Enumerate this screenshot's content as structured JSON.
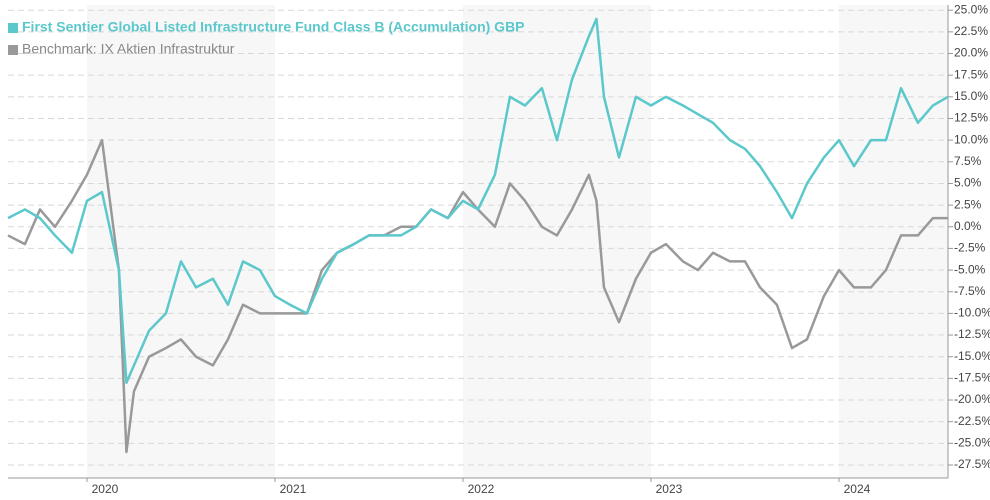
{
  "chart_data": {
    "type": "line",
    "x": [
      2019.58,
      2019.67,
      2019.75,
      2019.83,
      2019.92,
      2020.0,
      2020.08,
      2020.17,
      2020.21,
      2020.25,
      2020.33,
      2020.42,
      2020.5,
      2020.58,
      2020.67,
      2020.75,
      2020.83,
      2020.92,
      2021.0,
      2021.08,
      2021.17,
      2021.25,
      2021.33,
      2021.42,
      2021.5,
      2021.58,
      2021.67,
      2021.75,
      2021.83,
      2021.92,
      2022.0,
      2022.08,
      2022.17,
      2022.25,
      2022.33,
      2022.42,
      2022.5,
      2022.58,
      2022.67,
      2022.71,
      2022.75,
      2022.83,
      2022.92,
      2023.0,
      2023.08,
      2023.17,
      2023.25,
      2023.33,
      2023.42,
      2023.5,
      2023.58,
      2023.67,
      2023.75,
      2023.83,
      2023.92,
      2024.0,
      2024.08,
      2024.17,
      2024.25,
      2024.33,
      2024.42,
      2024.5,
      2024.58
    ],
    "series": [
      {
        "name": "First Sentier Global Listed Infrastructure Fund Class B (Accumulation) GBP",
        "color": "#5bc8cc",
        "values": [
          1,
          2,
          1,
          -1,
          -3,
          3,
          4,
          -5,
          -18,
          -16,
          -12,
          -10,
          -4,
          -7,
          -6,
          -9,
          -4,
          -5,
          -8,
          -9,
          -10,
          -6,
          -3,
          -2,
          -1,
          -1,
          -1,
          0,
          2,
          1,
          3,
          2,
          6,
          15,
          14,
          16,
          10,
          17,
          22,
          24,
          15,
          8,
          15,
          14,
          15,
          14,
          13,
          12,
          10,
          9,
          7,
          4,
          1,
          5,
          8,
          10,
          7,
          10,
          10,
          16,
          12,
          14,
          15
        ]
      },
      {
        "name": "Benchmark: IX Aktien Infrastruktur",
        "color": "#999999",
        "values": [
          -1,
          -2,
          2,
          0,
          3,
          6,
          10,
          -5,
          -26,
          -19,
          -15,
          -14,
          -13,
          -15,
          -16,
          -13,
          -9,
          -10,
          -10,
          -10,
          -10,
          -5,
          -3,
          -2,
          -1,
          -1,
          0,
          0,
          2,
          1,
          4,
          2,
          0,
          5,
          3,
          0,
          -1,
          2,
          6,
          3,
          -7,
          -11,
          -6,
          -3,
          -2,
          -4,
          -5,
          -3,
          -4,
          -4,
          -7,
          -9,
          -14,
          -13,
          -8,
          -5,
          -7,
          -7,
          -5,
          -1,
          -1,
          1,
          1
        ]
      }
    ],
    "xlim": [
      2019.58,
      2024.58
    ],
    "xticks": [
      2020,
      2021,
      2022,
      2023,
      2024
    ],
    "ylim": [
      -29,
      25.6
    ],
    "yticks": [
      {
        "value": -27.5,
        "label": "-27.5%"
      },
      {
        "value": -25,
        "label": "-25.0%"
      },
      {
        "value": -22.5,
        "label": "-22.5%"
      },
      {
        "value": -20,
        "label": "-20.0%"
      },
      {
        "value": -17.5,
        "label": "-17.5%"
      },
      {
        "value": -15,
        "label": "-15.0%"
      },
      {
        "value": -12.5,
        "label": "-12.5%"
      },
      {
        "value": -10,
        "label": "-10.0%"
      },
      {
        "value": -7.5,
        "label": "-7.5%"
      },
      {
        "value": -5,
        "label": "-5.0%"
      },
      {
        "value": -2.5,
        "label": "-2.5%"
      },
      {
        "value": 0,
        "label": "0.0%"
      },
      {
        "value": 2.5,
        "label": "2.5%"
      },
      {
        "value": 5,
        "label": "5.0%"
      },
      {
        "value": 7.5,
        "label": "7.5%"
      },
      {
        "value": 10,
        "label": "10.0%"
      },
      {
        "value": 12.5,
        "label": "12.5%"
      },
      {
        "value": 15,
        "label": "15.0%"
      },
      {
        "value": 17.5,
        "label": "17.5%"
      },
      {
        "value": 20,
        "label": "20.0%"
      },
      {
        "value": 22.5,
        "label": "22.5%"
      },
      {
        "value": 25,
        "label": "25.0%"
      }
    ],
    "grid": true,
    "legend": "top-left"
  }
}
